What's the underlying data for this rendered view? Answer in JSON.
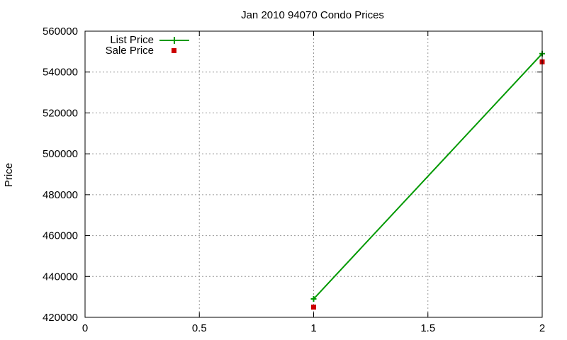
{
  "colors": {
    "list": "#009900",
    "sale": "#cc0000",
    "grid": "#999999",
    "axis": "#000000"
  },
  "chart_data": {
    "type": "line",
    "title": "Jan 2010 94070 Condo Prices",
    "xlabel": "",
    "ylabel": "Price",
    "xlim": [
      0,
      2
    ],
    "ylim": [
      420000,
      560000
    ],
    "x_ticks": [
      0,
      0.5,
      1,
      1.5,
      2
    ],
    "x_tick_labels": [
      "0",
      "0.5",
      "1",
      "1.5",
      "2"
    ],
    "y_ticks": [
      420000,
      440000,
      460000,
      480000,
      500000,
      520000,
      540000,
      560000
    ],
    "y_tick_labels": [
      "420000",
      "440000",
      "460000",
      "480000",
      "500000",
      "520000",
      "540000",
      "560000"
    ],
    "grid": true,
    "legend_position": "top-left",
    "series": [
      {
        "name": "List Price",
        "style": "line-with-plus-markers",
        "color": "#009900",
        "points": [
          {
            "x": 1,
            "y": 429000
          },
          {
            "x": 2,
            "y": 549000
          }
        ]
      },
      {
        "name": "Sale Price",
        "style": "square-markers",
        "color": "#cc0000",
        "points": [
          {
            "x": 1,
            "y": 425000
          },
          {
            "x": 2,
            "y": 545000
          }
        ]
      }
    ]
  }
}
